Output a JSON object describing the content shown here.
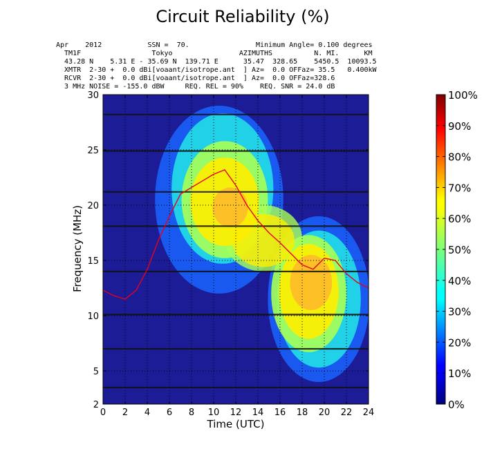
{
  "chart_data": {
    "type": "heatmap",
    "title": "Circuit Reliability (%)",
    "header_lines": [
      "Apr    2012           SSN =  70.                Minimum Angle= 0.100 degrees",
      "  TM1F                 Tokyo                AZIMUTHS          N. MI.      KM",
      "  43.28 N    5.31 E - 35.69 N  139.71 E      35.47  328.65    5450.5  10093.5",
      "  XMTR  2-30 +  0.0 dBi[voaant/isotrope.ant  ] Az=  0.0 OFFaz= 35.5   0.400kW",
      "  RCVR  2-30 +  0.0 dBi[voaant/isotrope.ant  ] Az=  0.0 OFFaz=328.6",
      "  3 MHz NOISE = -155.0 dBW     REQ. REL = 90%    REQ. SNR = 24.0 dB"
    ],
    "xlabel": "Time (UTC)",
    "ylabel": "Frequency (MHz)",
    "xlim": [
      0,
      24
    ],
    "ylim": [
      2,
      30
    ],
    "x_ticks": [
      "0",
      "2",
      "4",
      "6",
      "8",
      "10",
      "12",
      "14",
      "16",
      "18",
      "20",
      "22",
      "24"
    ],
    "y_ticks": [
      "2",
      "5",
      "10",
      "15",
      "20",
      "25",
      "30"
    ],
    "y_tick_values": [
      2,
      5,
      10,
      15,
      20,
      25,
      30
    ],
    "colorbar_ticks": [
      "0%",
      "10%",
      "20%",
      "30%",
      "40%",
      "50%",
      "60%",
      "70%",
      "80%",
      "90%",
      "100%"
    ],
    "colormap": "jet",
    "grid": "dotted",
    "broadcast_bands_mhz": [
      3.5,
      7.0,
      10.1,
      14.0,
      18.1,
      21.2,
      24.9,
      28.2
    ],
    "muf_line": {
      "x": [
        0,
        1,
        2,
        3,
        4,
        5,
        6,
        7,
        8,
        9,
        10,
        11,
        12,
        13,
        14,
        15,
        16,
        17,
        18,
        19,
        20,
        21,
        22,
        23,
        24
      ],
      "y": [
        12.3,
        11.8,
        11.5,
        12.3,
        14.2,
        16.8,
        19.0,
        21.0,
        21.6,
        22.2,
        22.8,
        23.2,
        21.8,
        20.0,
        18.6,
        17.5,
        16.6,
        15.6,
        14.6,
        14.2,
        15.2,
        15.0,
        13.8,
        13.0,
        12.5
      ]
    }
  }
}
